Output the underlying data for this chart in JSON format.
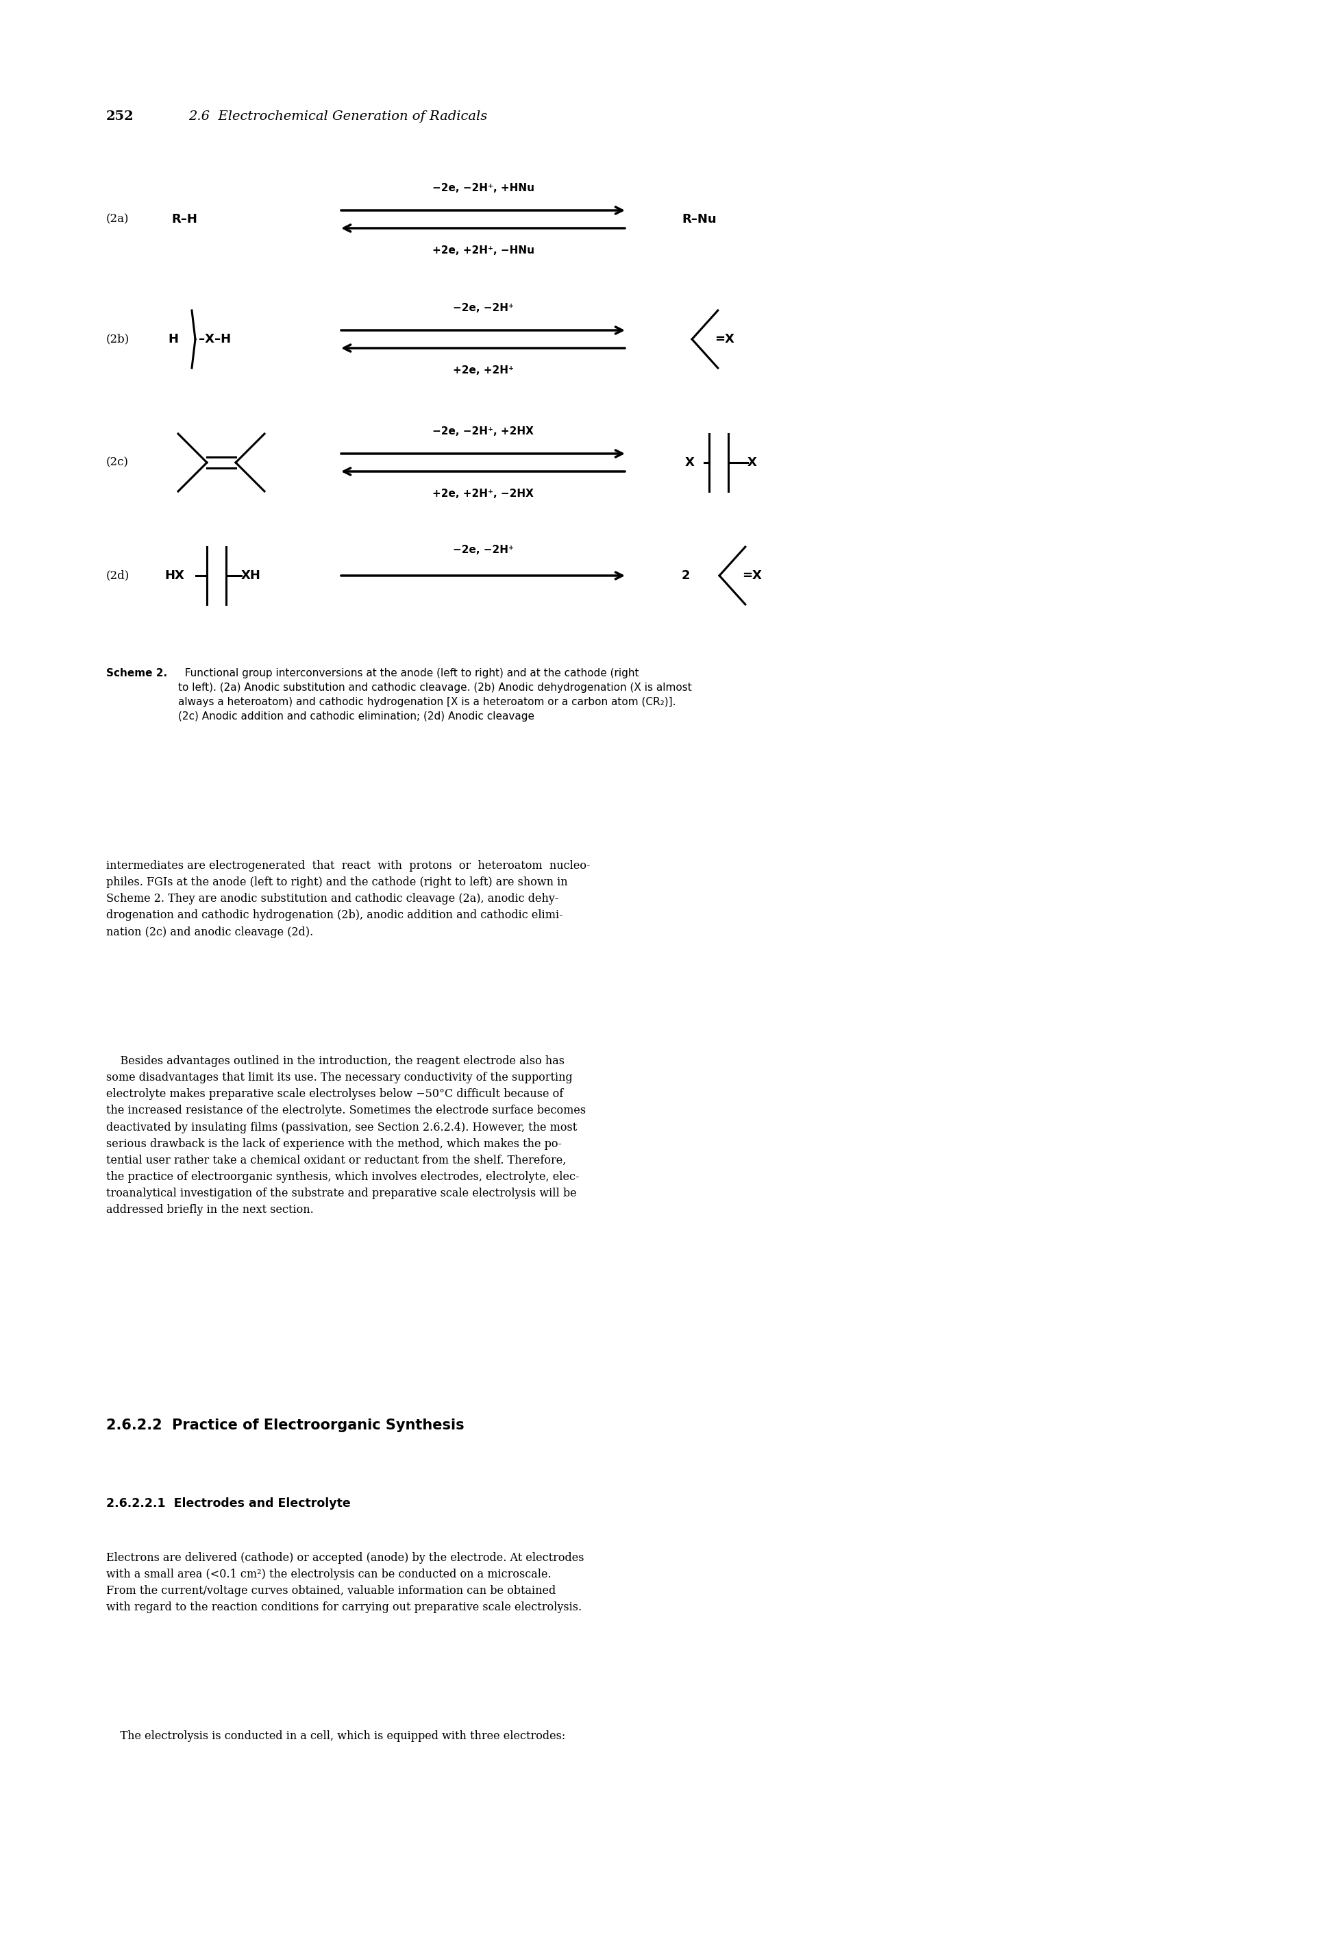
{
  "bg_color": "#ffffff",
  "page_number": "252",
  "header_text": "2.6  Electrochemical Generation of Radicals",
  "label_2a": "(2a)",
  "label_2b": "(2b)",
  "label_2c": "(2c)",
  "label_2d": "(2d)",
  "mol_rh": "R–H",
  "mol_rnu": "R–Nu",
  "arrow_2a_top": "−2e, −2H⁺, +HNu",
  "arrow_2a_bot": "+2e, +2H⁺, −HNu",
  "arrow_2b_top": "−2e, −2H⁺",
  "arrow_2b_bot": "+2e, +2H⁺",
  "arrow_2c_top": "−2e, −2H⁺, +2HX",
  "arrow_2c_bot": "+2e, +2H⁺, −2HX",
  "arrow_2d_top": "−2e, −2H⁺",
  "scheme2_bold": "Scheme 2.",
  "scheme2_text": "  Functional group interconversions at the anode (left to right) and at the cathode (right\nto left). (2a) Anodic substitution and cathodic cleavage. (2b) Anodic dehydrogenation (X is almost\nalways a heteroatom) and cathodic hydrogenation [X is a heteroatom or a carbon atom (CR₂)].\n(2c) Anodic addition and cathodic elimination; (2d) Anodic cleavage",
  "body_para1": "intermediates are electrogenerated  that  react  with  protons  or  heteroatom  nucleo-\nphiles. FGIs at the anode (left to right) and the cathode (right to left) are shown in\nScheme 2. They are anodic substitution and cathodic cleavage (2a), anodic dehy-\ndrogenation and cathodic hydrogenation (2b), anodic addition and cathodic elimi-\nnation (2c) and anodic cleavage (2d).",
  "body_indent": "    Besides advantages outlined in the introduction, the reagent electrode also has\nsome disadvantages that limit its use. The necessary conductivity of the supporting\nelectrolyte makes preparative scale electrolyses below −50°C difficult because of\nthe increased resistance of the electrolyte. Sometimes the electrode surface becomes\ndeactivated by insulating films (passivation, see Section 2.6.2.4). However, the most\nserious drawback is the lack of experience with the method, which makes the po-\ntential user rather take a chemical oxidant or reductant from the shelf. Therefore,\nthe practice of electroorganic synthesis, which involves electrodes, electrolyte, elec-\ntroanalytical investigation of the substrate and preparative scale electrolysis will be\naddressed briefly in the next section.",
  "section_heading": "2.6.2.2  Practice of Electroorganic Synthesis",
  "subsection_heading": "2.6.2.2.1  Electrodes and Electrolyte",
  "para3": "Electrons are delivered (cathode) or accepted (anode) by the electrode. At electrodes\nwith a small area (<0.1 cm²) the electrolysis can be conducted on a microscale.\nFrom the current/voltage curves obtained, valuable information can be obtained\nwith regard to the reaction conditions for carrying out preparative scale electrolysis.",
  "para3_indent": "    The electrolysis is conducted in a cell, which is equipped with three electrodes:"
}
